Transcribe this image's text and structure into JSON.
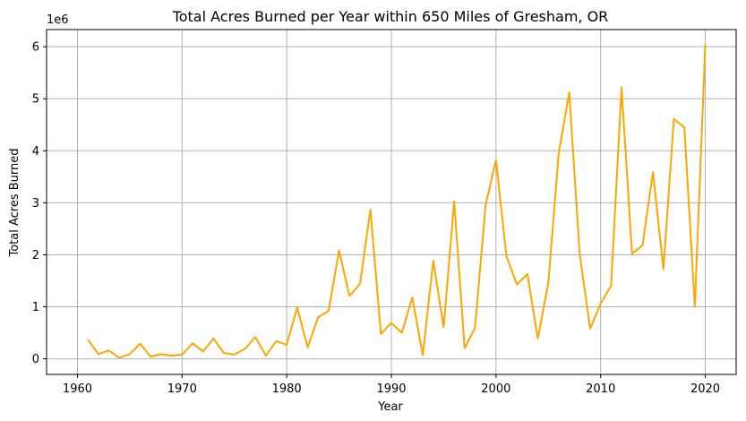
{
  "chart_data": {
    "type": "line",
    "title": "Total Acres Burned per Year within 650 Miles of Gresham, OR",
    "xlabel": "Year",
    "ylabel": "Total Acres Burned",
    "y_offset_label": "1e6",
    "xlim": [
      1957.05,
      2022.95
    ],
    "ylim": [
      -300000,
      6330000
    ],
    "x_ticks": [
      1960,
      1970,
      1980,
      1990,
      2000,
      2010,
      2020
    ],
    "y_ticks": [
      0,
      1000000,
      2000000,
      3000000,
      4000000,
      5000000,
      6000000
    ],
    "y_tick_labels": [
      "0",
      "1",
      "2",
      "3",
      "4",
      "5",
      "6"
    ],
    "grid": true,
    "color": "#ffa500",
    "x": [
      1961,
      1962,
      1963,
      1964,
      1965,
      1966,
      1967,
      1968,
      1969,
      1970,
      1971,
      1972,
      1973,
      1974,
      1975,
      1976,
      1977,
      1978,
      1979,
      1980,
      1981,
      1982,
      1983,
      1984,
      1985,
      1986,
      1987,
      1988,
      1989,
      1990,
      1991,
      1992,
      1993,
      1994,
      1995,
      1996,
      1997,
      1998,
      1999,
      2000,
      2001,
      2002,
      2003,
      2004,
      2005,
      2006,
      2007,
      2008,
      2009,
      2010,
      2011,
      2012,
      2013,
      2014,
      2015,
      2016,
      2017,
      2018,
      2019,
      2020
    ],
    "values": [
      370000,
      90000,
      160000,
      20000,
      90000,
      290000,
      40000,
      90000,
      60000,
      80000,
      300000,
      140000,
      390000,
      110000,
      80000,
      190000,
      420000,
      60000,
      340000,
      270000,
      990000,
      220000,
      800000,
      920000,
      2080000,
      1210000,
      1440000,
      2870000,
      480000,
      690000,
      500000,
      1180000,
      70000,
      1880000,
      610000,
      3030000,
      200000,
      600000,
      2950000,
      3820000,
      1970000,
      1430000,
      1630000,
      390000,
      1460000,
      3960000,
      5120000,
      2010000,
      580000,
      1060000,
      1410000,
      5220000,
      2020000,
      2180000,
      3590000,
      1720000,
      4610000,
      4450000,
      1000000,
      6040000
    ]
  }
}
